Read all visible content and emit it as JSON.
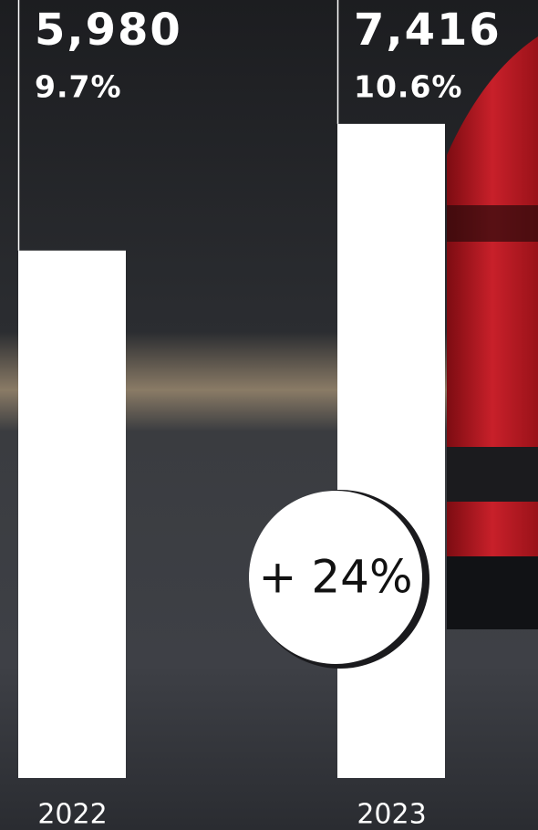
{
  "chart_data": {
    "type": "bar",
    "categories": [
      "2022",
      "2023"
    ],
    "values": [
      5980,
      7416
    ],
    "value_labels": [
      "5,980",
      "7,416"
    ],
    "share_values": [
      9.7,
      10.6
    ],
    "share_labels": [
      "9.7%",
      "10.6%"
    ],
    "annotation": "+ 24%",
    "color": "#ffffff",
    "ylim": [
      0,
      8800
    ]
  }
}
